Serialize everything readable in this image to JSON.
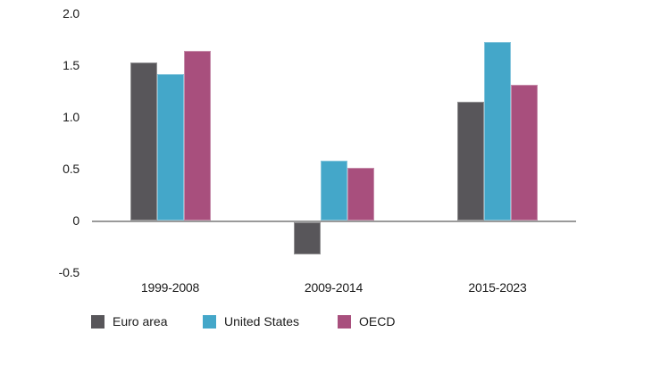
{
  "chart_data": {
    "type": "bar",
    "title": "",
    "xlabel": "",
    "ylabel": "",
    "categories": [
      "1999-2008",
      "2009-2014",
      "2015-2023"
    ],
    "series": [
      {
        "name": "Euro area",
        "color": "#58565a",
        "values": [
          1.53,
          -0.31,
          1.15
        ]
      },
      {
        "name": "United States",
        "color": "#44a7c9",
        "values": [
          1.41,
          0.58,
          1.72
        ]
      },
      {
        "name": "OECD",
        "color": "#a84f7d",
        "values": [
          1.64,
          0.51,
          1.31
        ]
      }
    ],
    "y_ticks": [
      {
        "value": 2.0,
        "label": "2.0"
      },
      {
        "value": 1.5,
        "label": "1.5"
      },
      {
        "value": 1.0,
        "label": "1.0"
      },
      {
        "value": 0.5,
        "label": "0.5"
      },
      {
        "value": 0,
        "label": "0"
      },
      {
        "value": -0.5,
        "label": "-0.5"
      }
    ],
    "ylim": [
      -0.5,
      2.0
    ],
    "grid": false,
    "legend_position": "bottom",
    "axis_color": "#9a9a9a",
    "text_color": "#1a1a1a"
  }
}
